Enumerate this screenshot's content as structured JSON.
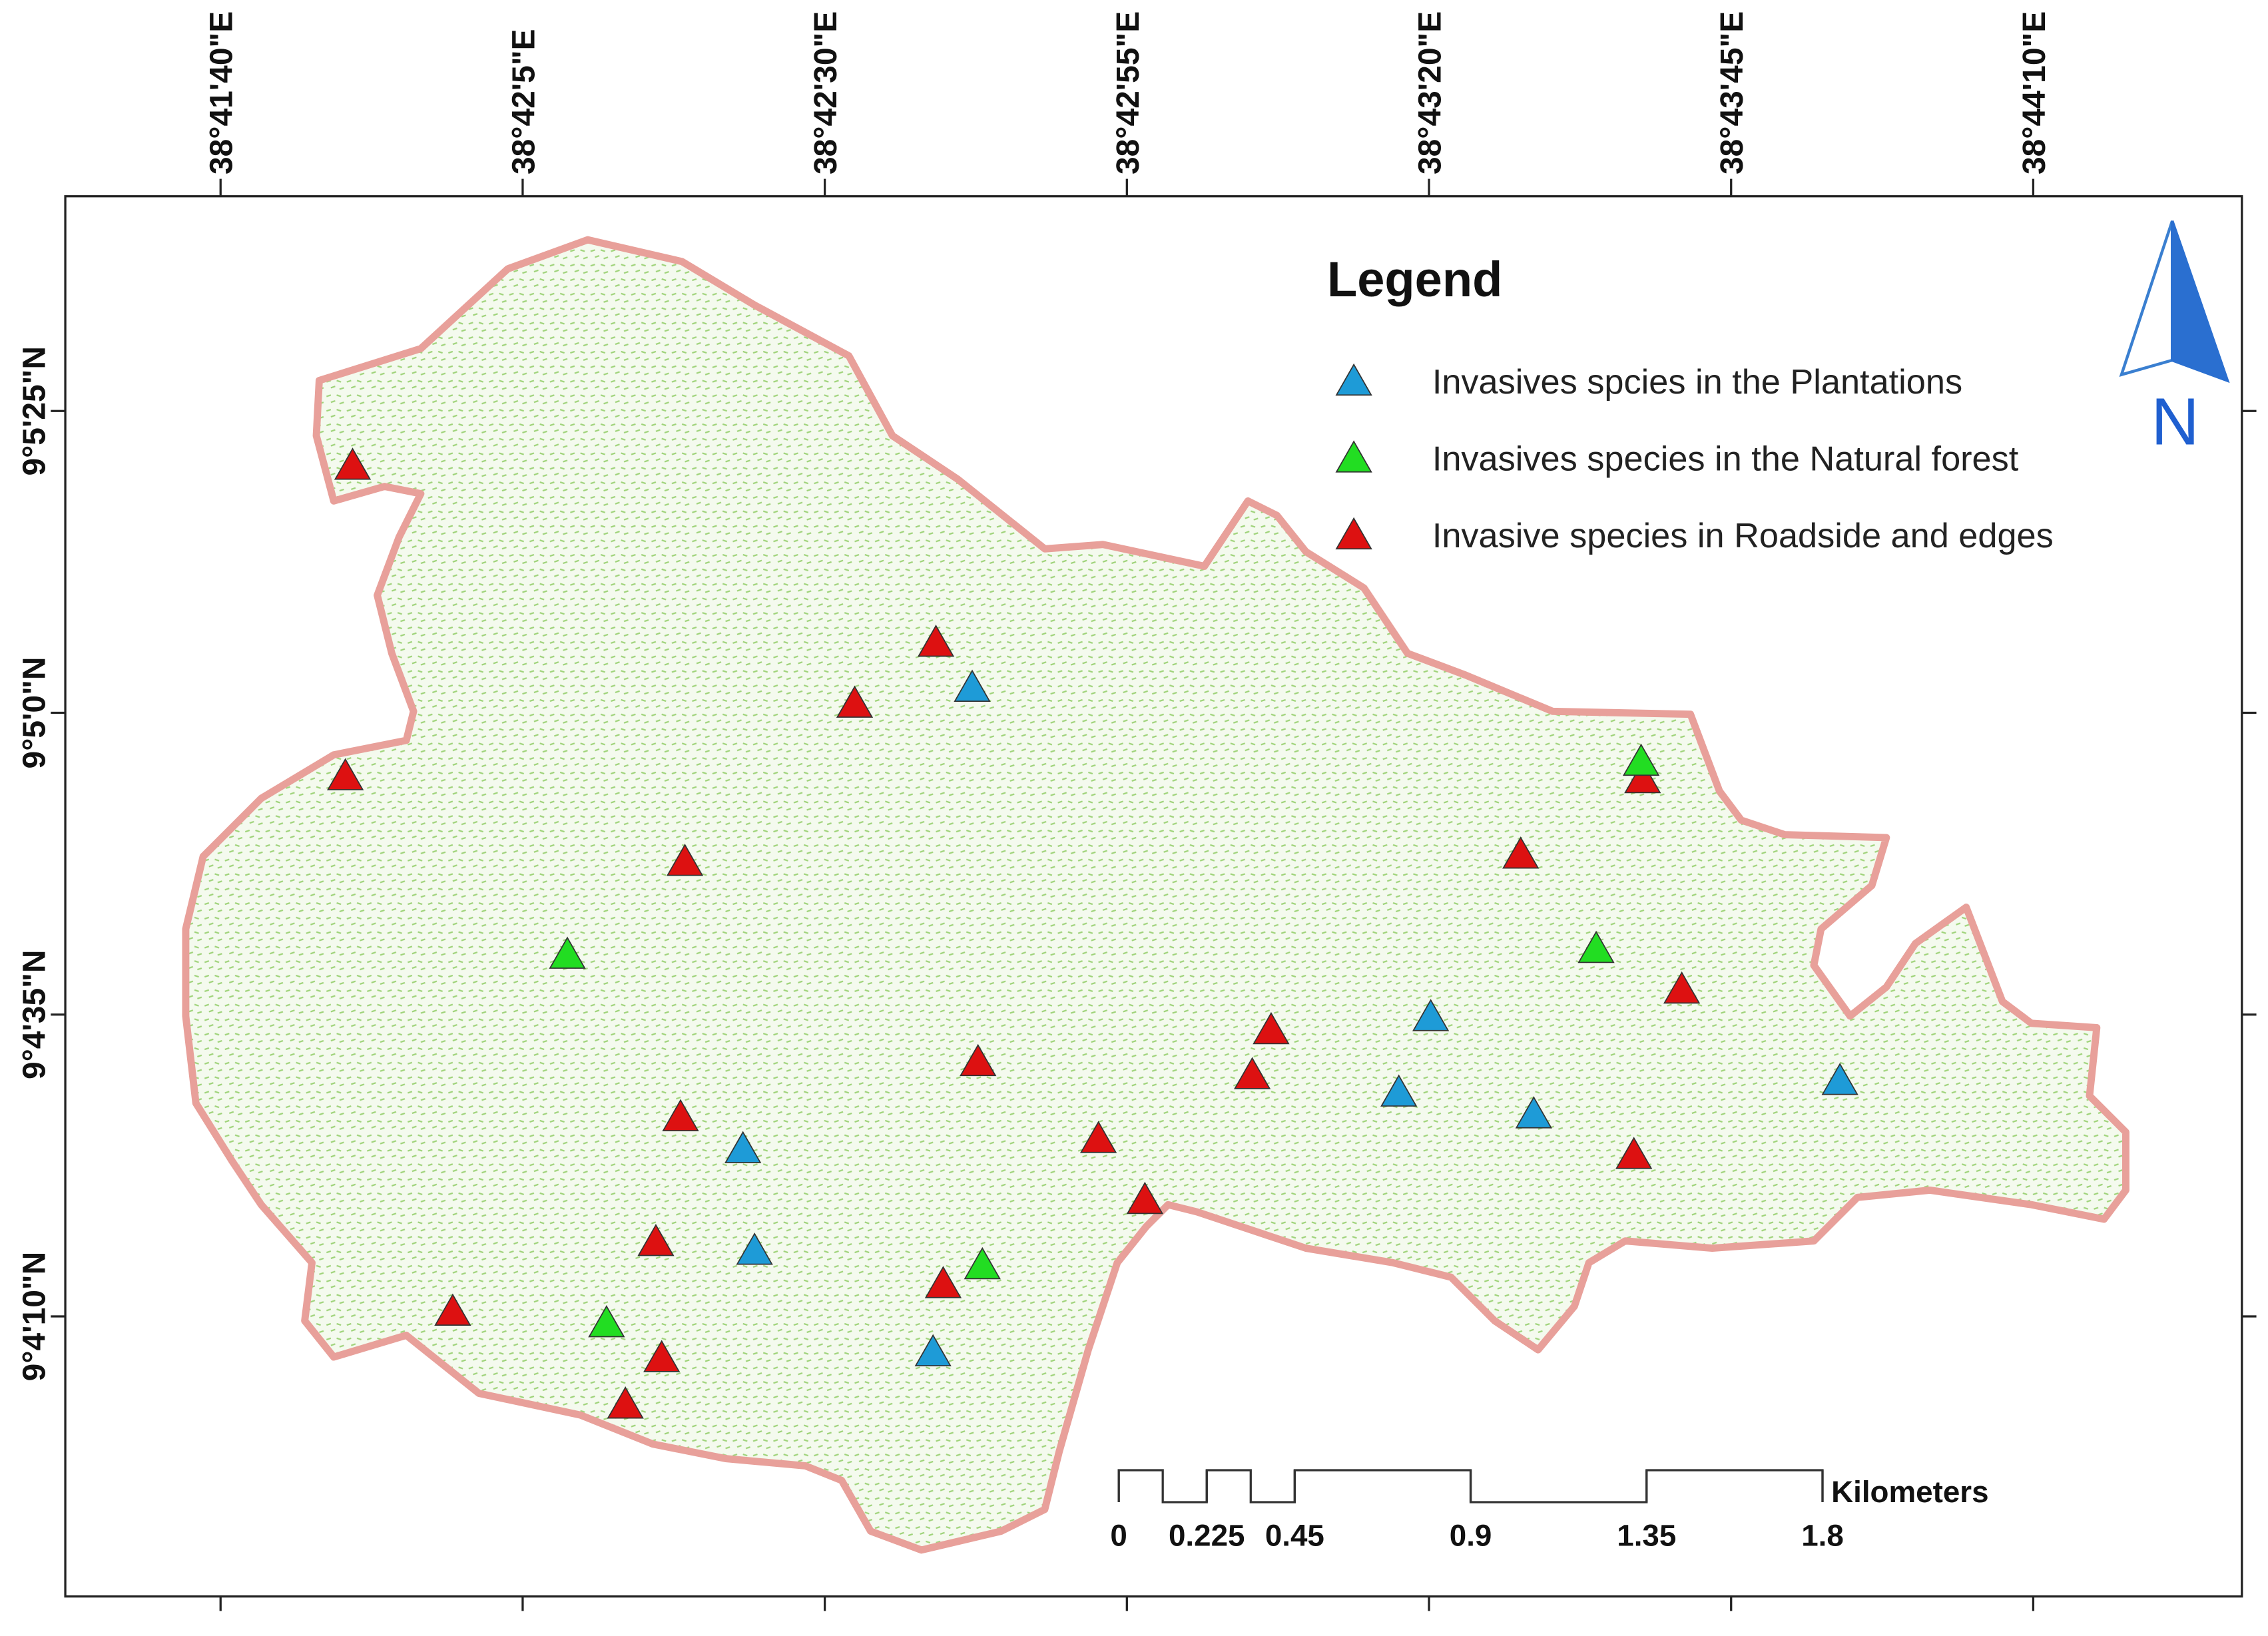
{
  "map": {
    "longitude_labels": [
      "38°41'40\"E",
      "38°42'5\"E",
      "38°42'30\"E",
      "38°42'55\"E",
      "38°43'20\"E",
      "38°43'45\"E",
      "38°44'10\"E"
    ],
    "latitude_labels": [
      "9°5'25\"N",
      "9°5'0\"N",
      "9°4'35\"N",
      "9°4'10\"N"
    ],
    "legend": {
      "title": "Legend",
      "items": [
        {
          "label": "Invasives spcies in the Plantations",
          "color": "#1e9bd7"
        },
        {
          "label": "Invasives species  in the Natural forest",
          "color": "#22dd22"
        },
        {
          "label": "Invasive species in Roadside and edges",
          "color": "#dd1111"
        }
      ]
    },
    "north_arrow": "N",
    "scale_bar": {
      "unit": "Kilometers",
      "ticks": [
        0,
        0.225,
        0.45,
        0.9,
        1.35,
        1.8
      ]
    }
  }
}
